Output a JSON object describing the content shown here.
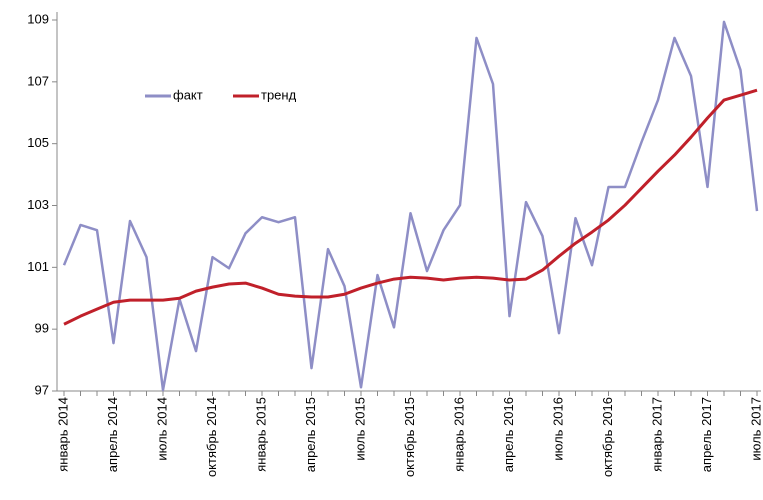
{
  "chart_data": {
    "type": "line",
    "categories": [
      "январь 2014",
      null,
      null,
      "апрель 2014",
      null,
      null,
      "июль 2014",
      null,
      null,
      "октябрь 2014",
      null,
      null,
      "январь 2015",
      null,
      null,
      "апрель 2015",
      null,
      null,
      "июль 2015",
      null,
      null,
      "октябрь 2015",
      null,
      null,
      "январь 2016",
      null,
      null,
      "апрель 2016",
      null,
      null,
      "июль 2016",
      null,
      null,
      "октябрь 2016",
      null,
      null,
      "январь 2017",
      null,
      null,
      "апрель 2017",
      null,
      null,
      "июль 2017"
    ],
    "series": [
      {
        "name": "факт",
        "color": "#8e8ec6",
        "values": [
          101.07,
          102.37,
          102.2,
          98.55,
          102.5,
          101.33,
          97.03,
          99.97,
          98.29,
          101.33,
          100.97,
          102.1,
          102.62,
          102.46,
          102.62,
          97.74,
          101.59,
          100.39,
          97.12,
          100.75,
          99.06,
          102.75,
          100.88,
          102.2,
          103.01,
          108.42,
          106.93,
          99.42,
          103.11,
          102.01,
          98.87,
          102.59,
          101.07,
          103.6,
          103.6,
          105.05,
          106.41,
          108.42,
          107.19,
          103.6,
          108.94,
          107.38,
          102.82
        ]
      },
      {
        "name": "тренд",
        "color": "#c0202a",
        "values": [
          99.16,
          99.42,
          99.65,
          99.87,
          99.94,
          99.94,
          99.94,
          100.0,
          100.23,
          100.36,
          100.46,
          100.49,
          100.33,
          100.13,
          100.07,
          100.04,
          100.04,
          100.13,
          100.33,
          100.49,
          100.62,
          100.68,
          100.65,
          100.59,
          100.65,
          100.68,
          100.65,
          100.59,
          100.62,
          100.91,
          101.36,
          101.78,
          102.14,
          102.53,
          103.01,
          103.56,
          104.11,
          104.63,
          105.21,
          105.83,
          106.41,
          106.57,
          106.73
        ]
      }
    ],
    "ylim": [
      97,
      109
    ],
    "yticks": [
      97,
      99,
      101,
      103,
      105,
      107,
      109
    ],
    "grid": false,
    "legend": "upper left"
  }
}
